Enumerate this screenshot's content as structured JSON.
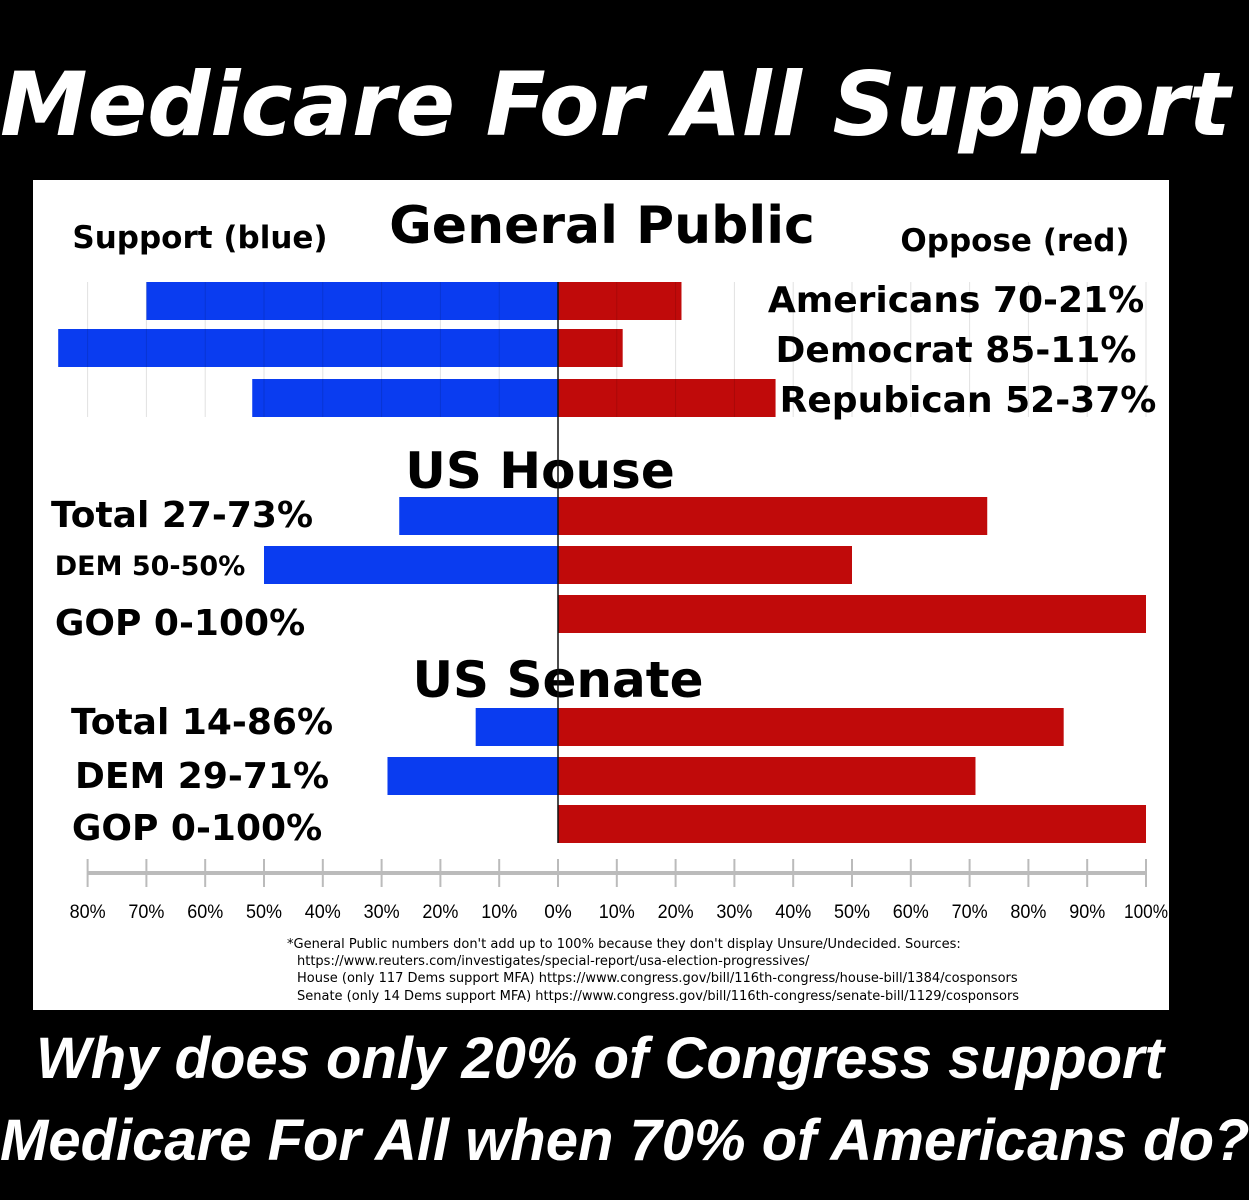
{
  "headline": "Medicare For All Support",
  "question": {
    "line1": "Why does only 20% of Congress support",
    "line2": "Medicare For All when 70% of Americans do?"
  },
  "colors": {
    "support": "#0a3cf0",
    "oppose": "#c00a0a",
    "background": "#000000",
    "panel": "#ffffff"
  },
  "chart_data": {
    "type": "bar",
    "orientation": "horizontal-diverging",
    "legend": {
      "support": "Support (blue)",
      "oppose": "Oppose (red)"
    },
    "xlim": [
      -80,
      100
    ],
    "x_ticks": [
      "80%",
      "70%",
      "60%",
      "50%",
      "40%",
      "30%",
      "20%",
      "10%",
      "0%",
      "10%",
      "20%",
      "30%",
      "40%",
      "50%",
      "60%",
      "70%",
      "80%",
      "90%",
      "100%"
    ],
    "groups": [
      {
        "title": "General Public",
        "rows": [
          {
            "label": "Americans 70-21%",
            "support": 70,
            "oppose": 21
          },
          {
            "label": "Democrat 85-11%",
            "support": 85,
            "oppose": 11
          },
          {
            "label": "Repubican 52-37%",
            "support": 52,
            "oppose": 37
          }
        ]
      },
      {
        "title": "US House",
        "rows": [
          {
            "label": "Total 27-73%",
            "support": 27,
            "oppose": 73
          },
          {
            "label": "DEM 50-50%",
            "support": 50,
            "oppose": 50
          },
          {
            "label": "GOP 0-100%",
            "support": 0,
            "oppose": 100
          }
        ]
      },
      {
        "title": "US Senate",
        "rows": [
          {
            "label": "Total 14-86%",
            "support": 14,
            "oppose": 86
          },
          {
            "label": "DEM 29-71%",
            "support": 29,
            "oppose": 71
          },
          {
            "label": "GOP 0-100%",
            "support": 0,
            "oppose": 100
          }
        ]
      }
    ],
    "footnote": [
      "*General Public numbers don't add up to 100% because they don't display Unsure/Undecided. Sources:",
      "https://www.reuters.com/investigates/special-report/usa-election-progressives/",
      "House (only 117 Dems support MFA) https://www.congress.gov/bill/116th-congress/house-bill/1384/cosponsors",
      "Senate (only 14 Dems support MFA)  https://www.congress.gov/bill/116th-congress/senate-bill/1129/cosponsors"
    ]
  }
}
